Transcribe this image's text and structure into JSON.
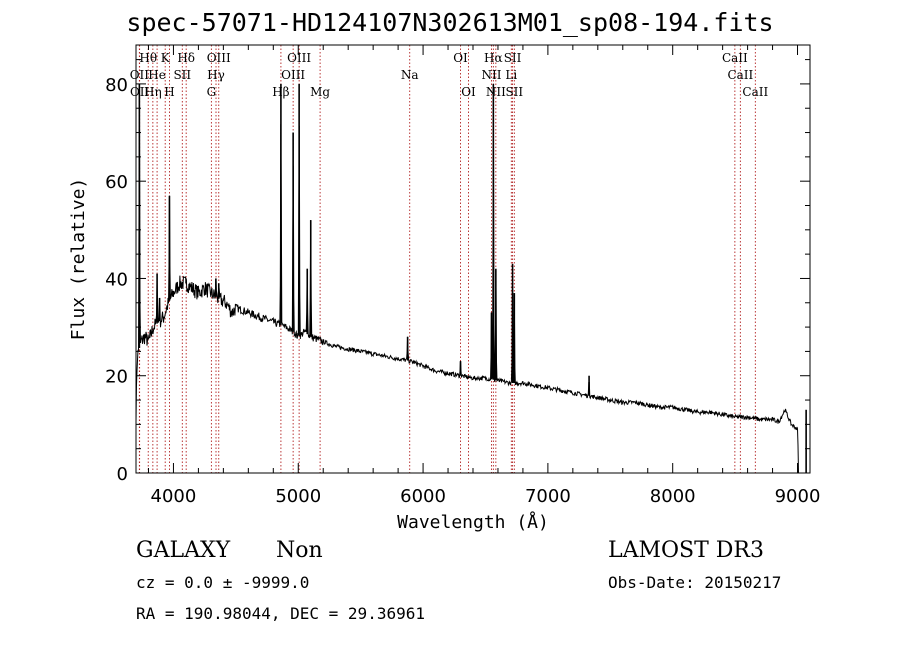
{
  "chart_data": {
    "type": "line",
    "title": "spec-57071-HD124107N302613M01_sp08-194.fits",
    "xlabel": "Wavelength (Å)",
    "ylabel": "Flux (relative)",
    "xlim": [
      3700,
      9100
    ],
    "ylim": [
      0,
      88
    ],
    "xticks": [
      4000,
      5000,
      6000,
      7000,
      8000,
      9000
    ],
    "yticks": [
      0,
      20,
      40,
      60,
      80
    ],
    "xtick_labels": [
      "4000",
      "5000",
      "6000",
      "7000",
      "8000",
      "9000"
    ],
    "ytick_labels": [
      "0",
      "20",
      "40",
      "60",
      "80"
    ],
    "series": [
      {
        "name": "spectrum",
        "continuum": [
          [
            3700,
            12
          ],
          [
            3710,
            24
          ],
          [
            3740,
            27
          ],
          [
            3770,
            28
          ],
          [
            3800,
            27
          ],
          [
            3840,
            30
          ],
          [
            3880,
            31
          ],
          [
            3920,
            32
          ],
          [
            3960,
            35
          ],
          [
            4000,
            37
          ],
          [
            4050,
            39
          ],
          [
            4100,
            39
          ],
          [
            4150,
            38
          ],
          [
            4200,
            37
          ],
          [
            4250,
            38
          ],
          [
            4300,
            37
          ],
          [
            4350,
            36
          ],
          [
            4420,
            35
          ],
          [
            4470,
            33
          ],
          [
            4500,
            34
          ],
          [
            4600,
            33
          ],
          [
            4700,
            32
          ],
          [
            4800,
            31
          ],
          [
            4900,
            30
          ],
          [
            4960,
            29
          ],
          [
            5000,
            28
          ],
          [
            5050,
            29
          ],
          [
            5100,
            28
          ],
          [
            5200,
            27
          ],
          [
            5300,
            26
          ],
          [
            5400,
            25.5
          ],
          [
            5500,
            25
          ],
          [
            5600,
            24.5
          ],
          [
            5700,
            24
          ],
          [
            5800,
            23.5
          ],
          [
            5900,
            23
          ],
          [
            6000,
            22
          ],
          [
            6100,
            21
          ],
          [
            6200,
            20.5
          ],
          [
            6300,
            20
          ],
          [
            6400,
            19.5
          ],
          [
            6500,
            19.5
          ],
          [
            6600,
            19
          ],
          [
            6700,
            18.5
          ],
          [
            6800,
            18.5
          ],
          [
            6900,
            18
          ],
          [
            7000,
            17.5
          ],
          [
            7100,
            17
          ],
          [
            7200,
            16.5
          ],
          [
            7300,
            16
          ],
          [
            7400,
            15.5
          ],
          [
            7500,
            15
          ],
          [
            7600,
            14.5
          ],
          [
            7700,
            14.5
          ],
          [
            7800,
            14
          ],
          [
            7900,
            13.5
          ],
          [
            8000,
            13.5
          ],
          [
            8100,
            13
          ],
          [
            8200,
            12.5
          ],
          [
            8300,
            12.5
          ],
          [
            8400,
            12
          ],
          [
            8500,
            11.5
          ],
          [
            8600,
            11.5
          ],
          [
            8700,
            11
          ],
          [
            8800,
            11
          ],
          [
            8850,
            10.5
          ],
          [
            8900,
            13
          ],
          [
            8950,
            10
          ],
          [
            9000,
            9
          ],
          [
            9010,
            0
          ]
        ],
        "emission_lines": [
          {
            "x": 3727,
            "y": 80
          },
          {
            "x": 3869,
            "y": 41
          },
          {
            "x": 3889,
            "y": 36
          },
          {
            "x": 3968,
            "y": 57
          },
          {
            "x": 4101,
            "y": 40
          },
          {
            "x": 4340,
            "y": 40
          },
          {
            "x": 4363,
            "y": 39
          },
          {
            "x": 4861,
            "y": 80
          },
          {
            "x": 4959,
            "y": 70
          },
          {
            "x": 5007,
            "y": 80
          },
          {
            "x": 5072,
            "y": 42
          },
          {
            "x": 5100,
            "y": 52
          },
          {
            "x": 5876,
            "y": 28
          },
          {
            "x": 6300,
            "y": 23
          },
          {
            "x": 6548,
            "y": 33
          },
          {
            "x": 6563,
            "y": 80
          },
          {
            "x": 6583,
            "y": 42
          },
          {
            "x": 6717,
            "y": 43
          },
          {
            "x": 6731,
            "y": 37
          },
          {
            "x": 7330,
            "y": 20
          },
          {
            "x": 9069,
            "y": 13
          }
        ]
      }
    ],
    "line_markers": [
      {
        "x": 3727,
        "label": "OII",
        "row": 1
      },
      {
        "x": 3729,
        "label": "OII",
        "row": 2
      },
      {
        "x": 3798,
        "label": "Hθ",
        "row": 0
      },
      {
        "x": 3835,
        "label": "Hη",
        "row": 2
      },
      {
        "x": 3869,
        "label": "He",
        "row": 1
      },
      {
        "x": 3934,
        "label": "K",
        "row": 0
      },
      {
        "x": 3968,
        "label": "H",
        "row": 2
      },
      {
        "x": 4071,
        "label": "SII",
        "row": 1
      },
      {
        "x": 4102,
        "label": "Hδ",
        "row": 0
      },
      {
        "x": 4304,
        "label": "G",
        "row": 2
      },
      {
        "x": 4341,
        "label": "Hγ",
        "row": 1
      },
      {
        "x": 4363,
        "label": "OIII",
        "row": 0
      },
      {
        "x": 4861,
        "label": "Hβ",
        "row": 2
      },
      {
        "x": 4959,
        "label": "OIII",
        "row": 1
      },
      {
        "x": 5007,
        "label": "OIII",
        "row": 0
      },
      {
        "x": 5175,
        "label": "Mg",
        "row": 2
      },
      {
        "x": 5893,
        "label": "Na",
        "row": 1
      },
      {
        "x": 6300,
        "label": "OI",
        "row": 0
      },
      {
        "x": 6364,
        "label": "OI",
        "row": 2
      },
      {
        "x": 6548,
        "label": "NII",
        "row": 1
      },
      {
        "x": 6563,
        "label": "Hα",
        "row": 0
      },
      {
        "x": 6583,
        "label": "NII",
        "row": 2
      },
      {
        "x": 6707,
        "label": "Li",
        "row": 1
      },
      {
        "x": 6717,
        "label": "SII",
        "row": 0
      },
      {
        "x": 6731,
        "label": "SII",
        "row": 2
      },
      {
        "x": 8498,
        "label": "CaII",
        "row": 0
      },
      {
        "x": 8542,
        "label": "CaII",
        "row": 1
      },
      {
        "x": 8662,
        "label": "CaII",
        "row": 2
      }
    ]
  },
  "info": {
    "class_label": "GALAXY",
    "subclass_label": "Non",
    "cz_text": "cz = 0.0 ± -9999.0",
    "coords_text": "RA = 190.98044, DEC =  29.36961",
    "survey_label": "LAMOST DR3",
    "obs_date_text": "Obs-Date: 20150217"
  },
  "colors": {
    "marker": "#b22222",
    "axis": "#000000",
    "trace": "#000000"
  }
}
